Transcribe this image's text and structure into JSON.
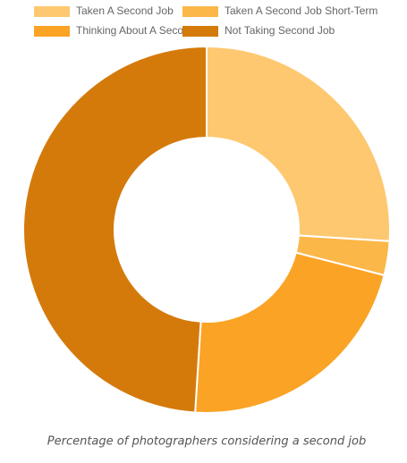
{
  "chart_data": {
    "type": "pie",
    "caption": "Percentage of photographers considering a second job",
    "categories": [
      "Taken A Second Job",
      "Taken A Second Job Short-Term",
      "Thinking About A Second Job",
      "Not Taking Second Job"
    ],
    "values": [
      26,
      3,
      22,
      49
    ],
    "colors": [
      "#fdc870",
      "#fbb748",
      "#fba325",
      "#d47a0b"
    ],
    "legend": "top"
  }
}
